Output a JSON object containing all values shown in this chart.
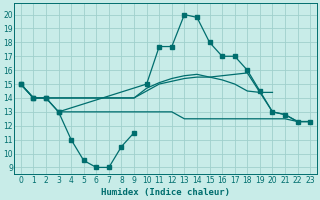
{
  "background_color": "#c8ece8",
  "grid_color": "#a0d0cc",
  "line_color": "#006e6e",
  "xlabel": "Humidex (Indice chaleur)",
  "xlim": [
    -0.5,
    23.5
  ],
  "ylim": [
    8.5,
    20.8
  ],
  "xticks": [
    0,
    1,
    2,
    3,
    4,
    5,
    6,
    7,
    8,
    9,
    10,
    11,
    12,
    13,
    14,
    15,
    16,
    17,
    18,
    19,
    20,
    21,
    22,
    23
  ],
  "yticks": [
    9,
    10,
    11,
    12,
    13,
    14,
    15,
    16,
    17,
    18,
    19,
    20
  ],
  "series1_x": [
    0,
    1,
    2,
    3,
    4,
    5,
    6,
    7,
    8,
    9
  ],
  "series1_y": [
    15,
    14,
    14,
    13,
    11,
    9.5,
    9,
    9,
    10.5,
    11.5
  ],
  "series2_x": [
    0,
    1,
    2,
    3,
    4,
    5,
    6,
    7,
    8,
    9,
    10,
    11,
    12,
    13,
    14,
    15,
    16,
    17,
    18,
    19,
    20,
    21,
    22,
    23
  ],
  "series2_y": [
    15,
    14,
    14,
    14,
    14,
    14,
    14,
    14,
    14,
    14,
    14.5,
    15,
    15.2,
    15.4,
    15.5,
    15.5,
    15.6,
    15.7,
    15.8,
    14.4,
    13,
    12.8,
    12.3,
    12.3
  ],
  "series3_x": [
    0,
    1,
    2,
    3,
    4,
    5,
    6,
    7,
    8,
    9,
    10,
    11,
    12,
    13,
    14,
    15,
    16,
    17,
    18,
    19,
    20
  ],
  "series3_y": [
    15,
    14,
    14,
    14,
    14,
    14,
    14,
    14,
    14,
    14,
    14.7,
    15.1,
    15.4,
    15.6,
    15.7,
    15.5,
    15.3,
    15.0,
    14.5,
    14.4,
    14.4
  ],
  "series4_x": [
    3,
    4,
    5,
    6,
    7,
    8,
    9,
    10,
    11,
    12,
    13,
    14,
    15,
    16,
    17,
    18,
    19,
    20,
    21,
    22,
    23
  ],
  "series4_y": [
    13,
    13,
    13,
    13,
    13,
    13,
    13,
    13,
    13,
    13,
    12.5,
    12.5,
    12.5,
    12.5,
    12.5,
    12.5,
    12.5,
    12.5,
    12.5,
    12.3,
    12.3
  ],
  "series5_x": [
    0,
    1,
    2,
    3,
    10,
    11,
    12,
    13,
    14,
    15,
    16,
    17,
    18,
    19,
    20,
    21,
    22,
    23
  ],
  "series5_y": [
    15,
    14,
    14,
    13,
    15,
    17.7,
    17.7,
    20,
    19.8,
    18,
    17,
    17,
    16,
    14.5,
    13,
    12.8,
    12.3,
    12.3
  ]
}
